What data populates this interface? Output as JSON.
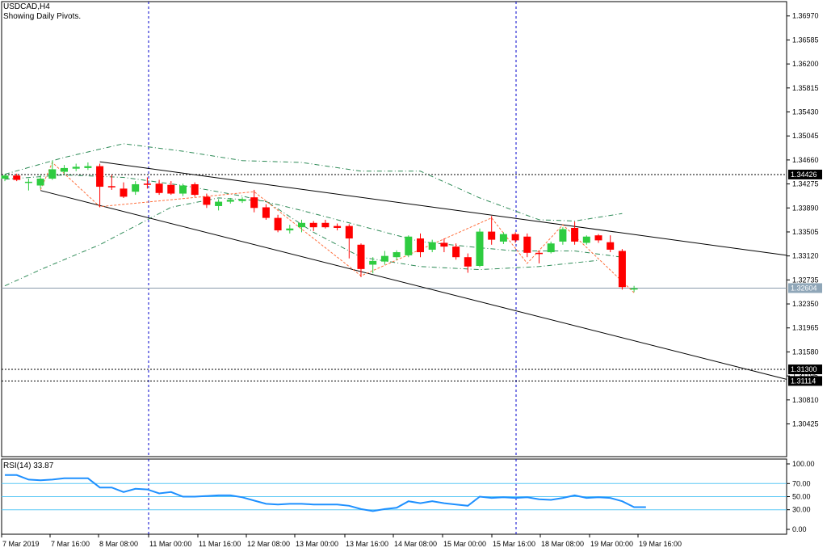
{
  "header": {
    "symbol": "USDCAD,H4",
    "subtitle": "Showing Daily Pivots."
  },
  "rsi_header": "RSI(14) 33.87",
  "colors": {
    "bull": "#2ecc40",
    "bear": "#ff0000",
    "bb": "#2e8b57",
    "pivot_line": "#ff6f3c",
    "trend": "#000000",
    "rsi_line": "#1e90ff",
    "rsi_level": "#5bc8f5",
    "vline": "#0000cc",
    "price_line": "#8899aa"
  },
  "chart_data": [
    {
      "type": "candlestick",
      "title": "USDCAD,H4",
      "subtitle": "Showing Daily Pivots.",
      "ylim": [
        1.299,
        1.372
      ],
      "y_ticks": [
        "1.36970",
        "1.36585",
        "1.36200",
        "1.35815",
        "1.35430",
        "1.35045",
        "1.34660",
        "1.34275",
        "1.33890",
        "1.33505",
        "1.33120",
        "1.32735",
        "1.32350",
        "1.31965",
        "1.31580",
        "1.31195",
        "1.30810",
        "1.30425"
      ],
      "x_tick_labels": [
        "7 Mar 2019",
        "7 Mar 16:00",
        "8 Mar 08:00",
        "11 Mar 00:00",
        "11 Mar 16:00",
        "12 Mar 08:00",
        "13 Mar 00:00",
        "13 Mar 16:00",
        "14 Mar 08:00",
        "15 Mar 00:00",
        "15 Mar 16:00",
        "18 Mar 08:00",
        "19 Mar 00:00",
        "19 Mar 16:00"
      ],
      "price_labels": [
        {
          "value": 1.34426,
          "text": "1.34426",
          "style": "dashed"
        },
        {
          "value": 1.32604,
          "text": "1.32604",
          "style": "current"
        },
        {
          "value": 1.313,
          "text": "1.31300",
          "style": "dashed"
        },
        {
          "value": 1.31114,
          "text": "1.31114",
          "style": "dashed"
        }
      ],
      "candles": [
        {
          "o": 1.3436,
          "h": 1.3443,
          "l": 1.3432,
          "c": 1.3441
        },
        {
          "o": 1.3441,
          "h": 1.3444,
          "l": 1.3432,
          "c": 1.3434
        },
        {
          "o": 1.3431,
          "h": 1.3436,
          "l": 1.3417,
          "c": 1.3431
        },
        {
          "o": 1.3425,
          "h": 1.3442,
          "l": 1.342,
          "c": 1.3436
        },
        {
          "o": 1.3436,
          "h": 1.3465,
          "l": 1.3434,
          "c": 1.3451
        },
        {
          "o": 1.3447,
          "h": 1.3458,
          "l": 1.3443,
          "c": 1.3453
        },
        {
          "o": 1.3452,
          "h": 1.346,
          "l": 1.3448,
          "c": 1.3455
        },
        {
          "o": 1.3453,
          "h": 1.3462,
          "l": 1.345,
          "c": 1.3456
        },
        {
          "o": 1.3456,
          "h": 1.346,
          "l": 1.339,
          "c": 1.3423
        },
        {
          "o": 1.3424,
          "h": 1.3442,
          "l": 1.3418,
          "c": 1.3422
        },
        {
          "o": 1.342,
          "h": 1.343,
          "l": 1.3405,
          "c": 1.3407
        },
        {
          "o": 1.3415,
          "h": 1.3432,
          "l": 1.341,
          "c": 1.3427
        },
        {
          "o": 1.3428,
          "h": 1.3438,
          "l": 1.342,
          "c": 1.3426
        },
        {
          "o": 1.3428,
          "h": 1.3434,
          "l": 1.341,
          "c": 1.3413
        },
        {
          "o": 1.3426,
          "h": 1.3432,
          "l": 1.341,
          "c": 1.3412
        },
        {
          "o": 1.3412,
          "h": 1.3428,
          "l": 1.3408,
          "c": 1.3425
        },
        {
          "o": 1.3427,
          "h": 1.343,
          "l": 1.3407,
          "c": 1.341
        },
        {
          "o": 1.3407,
          "h": 1.3412,
          "l": 1.3389,
          "c": 1.3394
        },
        {
          "o": 1.3392,
          "h": 1.3403,
          "l": 1.3385,
          "c": 1.3399
        },
        {
          "o": 1.3399,
          "h": 1.3405,
          "l": 1.3396,
          "c": 1.3402
        },
        {
          "o": 1.34,
          "h": 1.3406,
          "l": 1.3397,
          "c": 1.3403
        },
        {
          "o": 1.3406,
          "h": 1.3418,
          "l": 1.3382,
          "c": 1.3389
        },
        {
          "o": 1.339,
          "h": 1.3395,
          "l": 1.337,
          "c": 1.3373
        },
        {
          "o": 1.3373,
          "h": 1.3378,
          "l": 1.335,
          "c": 1.3353
        },
        {
          "o": 1.3353,
          "h": 1.3362,
          "l": 1.3348,
          "c": 1.3356
        },
        {
          "o": 1.3358,
          "h": 1.337,
          "l": 1.335,
          "c": 1.3365
        },
        {
          "o": 1.3365,
          "h": 1.3368,
          "l": 1.3352,
          "c": 1.3358
        },
        {
          "o": 1.3365,
          "h": 1.337,
          "l": 1.3356,
          "c": 1.3358
        },
        {
          "o": 1.336,
          "h": 1.3364,
          "l": 1.3353,
          "c": 1.3357
        },
        {
          "o": 1.336,
          "h": 1.3363,
          "l": 1.3308,
          "c": 1.334
        },
        {
          "o": 1.333,
          "h": 1.3332,
          "l": 1.3278,
          "c": 1.3291
        },
        {
          "o": 1.3298,
          "h": 1.331,
          "l": 1.3284,
          "c": 1.3304
        },
        {
          "o": 1.3303,
          "h": 1.332,
          "l": 1.3298,
          "c": 1.3312
        },
        {
          "o": 1.331,
          "h": 1.3321,
          "l": 1.3305,
          "c": 1.3318
        },
        {
          "o": 1.3313,
          "h": 1.3345,
          "l": 1.331,
          "c": 1.3343
        },
        {
          "o": 1.334,
          "h": 1.3348,
          "l": 1.331,
          "c": 1.3318
        },
        {
          "o": 1.3322,
          "h": 1.3338,
          "l": 1.3318,
          "c": 1.3334
        },
        {
          "o": 1.3333,
          "h": 1.334,
          "l": 1.3318,
          "c": 1.3327
        },
        {
          "o": 1.3327,
          "h": 1.3332,
          "l": 1.3306,
          "c": 1.331
        },
        {
          "o": 1.331,
          "h": 1.3316,
          "l": 1.3285,
          "c": 1.3295
        },
        {
          "o": 1.3296,
          "h": 1.3356,
          "l": 1.3294,
          "c": 1.3351
        },
        {
          "o": 1.3351,
          "h": 1.3376,
          "l": 1.333,
          "c": 1.3338
        },
        {
          "o": 1.3335,
          "h": 1.335,
          "l": 1.3331,
          "c": 1.3347
        },
        {
          "o": 1.3347,
          "h": 1.335,
          "l": 1.3333,
          "c": 1.3337
        },
        {
          "o": 1.3343,
          "h": 1.3348,
          "l": 1.331,
          "c": 1.3317
        },
        {
          "o": 1.3317,
          "h": 1.332,
          "l": 1.33,
          "c": 1.3315
        },
        {
          "o": 1.3318,
          "h": 1.3335,
          "l": 1.3316,
          "c": 1.3332
        },
        {
          "o": 1.3335,
          "h": 1.3358,
          "l": 1.333,
          "c": 1.3355
        },
        {
          "o": 1.3357,
          "h": 1.3367,
          "l": 1.333,
          "c": 1.3335
        },
        {
          "o": 1.3333,
          "h": 1.3345,
          "l": 1.333,
          "c": 1.3343
        },
        {
          "o": 1.3345,
          "h": 1.3347,
          "l": 1.3333,
          "c": 1.3337
        },
        {
          "o": 1.3334,
          "h": 1.3345,
          "l": 1.3318,
          "c": 1.3322
        },
        {
          "o": 1.332,
          "h": 1.3323,
          "l": 1.3258,
          "c": 1.3262
        },
        {
          "o": 1.326,
          "h": 1.3264,
          "l": 1.3254,
          "c": 1.326
        }
      ],
      "bollinger": {
        "upper": [
          [
            0,
            1.3443
          ],
          [
            5,
            1.347
          ],
          [
            10,
            1.3492
          ],
          [
            15,
            1.348
          ],
          [
            20,
            1.3465
          ],
          [
            25,
            1.3462
          ],
          [
            30,
            1.3448
          ],
          [
            35,
            1.3448
          ],
          [
            40,
            1.3405
          ],
          [
            45,
            1.337
          ],
          [
            48,
            1.3368
          ],
          [
            52,
            1.338
          ]
        ],
        "middle": [
          [
            0,
            1.3435
          ],
          [
            5,
            1.3442
          ],
          [
            10,
            1.3438
          ],
          [
            15,
            1.3425
          ],
          [
            20,
            1.3408
          ],
          [
            25,
            1.3385
          ],
          [
            30,
            1.336
          ],
          [
            35,
            1.3335
          ],
          [
            40,
            1.3325
          ],
          [
            43,
            1.332
          ],
          [
            48,
            1.332
          ],
          [
            52,
            1.331
          ]
        ],
        "lower": [
          [
            0,
            1.3264
          ],
          [
            3,
            1.329
          ],
          [
            8,
            1.333
          ],
          [
            14,
            1.339
          ],
          [
            18,
            1.3405
          ],
          [
            22,
            1.34
          ],
          [
            26,
            1.335
          ],
          [
            30,
            1.331
          ],
          [
            35,
            1.3295
          ],
          [
            40,
            1.329
          ],
          [
            45,
            1.3295
          ],
          [
            50,
            1.3305
          ]
        ]
      },
      "trendlines": [
        {
          "from": [
            8,
            1.3463
          ],
          "to": [
            67,
            1.3313
          ]
        },
        {
          "from": [
            3,
            1.3417
          ],
          "to": [
            67,
            1.3114
          ]
        }
      ],
      "pivot_swings": [
        [
          3,
          1.3418
        ],
        [
          4,
          1.3462
        ],
        [
          8,
          1.3391
        ],
        [
          21,
          1.3415
        ],
        [
          30,
          1.328
        ],
        [
          41,
          1.3373
        ],
        [
          44,
          1.33
        ],
        [
          47,
          1.3362
        ],
        [
          53,
          1.3253
        ]
      ]
    },
    {
      "type": "line",
      "title": "RSI(14) 33.87",
      "ylim": [
        0,
        100
      ],
      "y_ticks": [
        "100.00",
        "70.00",
        "50.00",
        "30.00",
        "0.00"
      ],
      "levels": [
        70,
        50,
        30
      ],
      "values": [
        83,
        83,
        76,
        75,
        76,
        78,
        78,
        78,
        64,
        64,
        57,
        62,
        61,
        55,
        57,
        50,
        50,
        51,
        52,
        52,
        49,
        44,
        39,
        38,
        39,
        39,
        38,
        38,
        38,
        36,
        31,
        28,
        31,
        33,
        43,
        40,
        43,
        40,
        38,
        36,
        50,
        48,
        49,
        48,
        49,
        46,
        45,
        48,
        52,
        48,
        49,
        48,
        43,
        34,
        34
      ]
    }
  ]
}
